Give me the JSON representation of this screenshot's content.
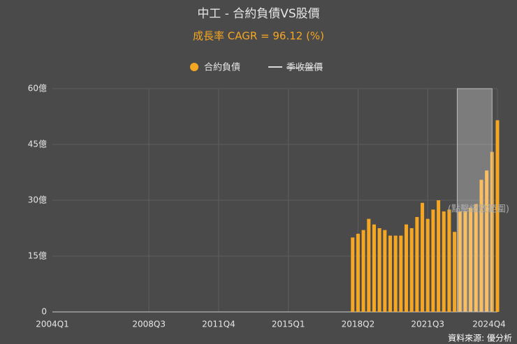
{
  "chart_data": {
    "type": "bar",
    "title": "中工 - 合約負債VS股價",
    "subtitle": "成長率 CAGR = 96.12 (%)",
    "categories": [
      "2004Q1",
      null,
      null,
      null,
      null,
      null,
      null,
      null,
      null,
      null,
      null,
      null,
      null,
      null,
      null,
      null,
      null,
      null,
      "2008Q3",
      null,
      null,
      null,
      null,
      null,
      null,
      null,
      null,
      null,
      null,
      null,
      null,
      "2011Q4",
      null,
      null,
      null,
      null,
      null,
      null,
      null,
      null,
      null,
      null,
      null,
      null,
      "2015Q1",
      null,
      null,
      null,
      null,
      null,
      null,
      null,
      null,
      null,
      null,
      null,
      null,
      "2018Q2",
      null,
      null,
      null,
      null,
      null,
      null,
      null,
      null,
      null,
      null,
      null,
      null,
      "2021Q3",
      null,
      null,
      null,
      null,
      null,
      null,
      null,
      null,
      null,
      null,
      null,
      null,
      "2024Q4"
    ],
    "series": [
      {
        "name": "合約負債",
        "color": "#f5a623",
        "values": [
          null,
          null,
          null,
          null,
          null,
          null,
          null,
          null,
          null,
          null,
          null,
          null,
          null,
          null,
          null,
          null,
          null,
          null,
          null,
          null,
          null,
          null,
          null,
          null,
          null,
          null,
          null,
          null,
          null,
          null,
          null,
          null,
          null,
          null,
          null,
          null,
          null,
          null,
          null,
          null,
          null,
          null,
          null,
          null,
          null,
          null,
          null,
          null,
          null,
          null,
          null,
          null,
          null,
          null,
          null,
          null,
          20,
          21,
          22,
          25,
          23.5,
          22.5,
          22,
          20.5,
          20.5,
          20.5,
          23.5,
          22.5,
          25.5,
          29.3,
          25,
          27.5,
          30,
          27,
          27.5,
          21.5,
          27,
          27,
          28,
          29,
          35.5,
          38,
          43,
          51.5
        ]
      }
    ],
    "legend": [
      {
        "name": "季收盤價",
        "color": "#d9d9d9",
        "hidden": true
      }
    ],
    "ylim": [
      0,
      60
    ],
    "yticks": [
      0,
      {
        "value": 15,
        "label": "15億"
      },
      {
        "value": 30,
        "label": "30億"
      },
      {
        "value": 45,
        "label": "45億"
      },
      {
        "value": 60,
        "label": "60億"
      }
    ],
    "grid": true,
    "highlight": {
      "from": 75.5,
      "to": 82,
      "label": "(點擊縮放範圍)"
    },
    "source": "資料來源: 優分析"
  }
}
